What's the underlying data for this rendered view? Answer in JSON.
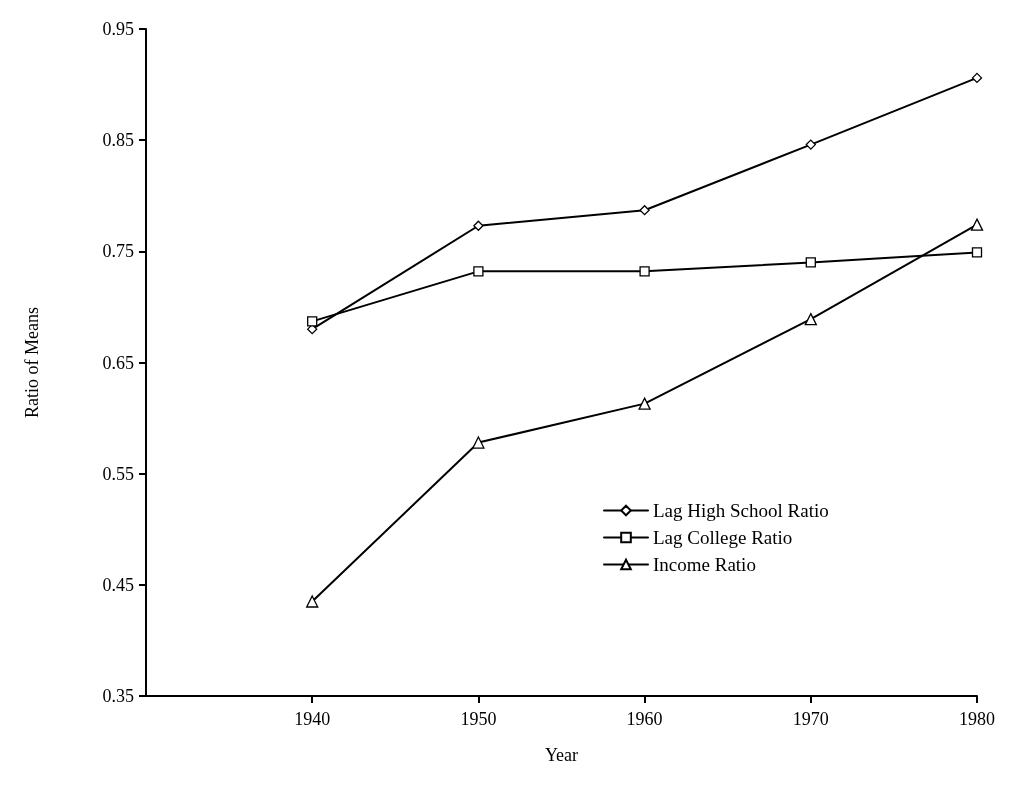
{
  "chart_data": {
    "type": "line",
    "xlabel": "Year",
    "ylabel": "Ratio of Means",
    "x": [
      1940,
      1950,
      1960,
      1970,
      1980
    ],
    "xlim": [
      1930,
      1980
    ],
    "xticks": [
      1940,
      1950,
      1960,
      1970,
      1980
    ],
    "ylim": [
      0.35,
      0.95
    ],
    "yticks": [
      0.35,
      0.45,
      0.55,
      0.65,
      0.75,
      0.85,
      0.95
    ],
    "grid": false,
    "legend": "right",
    "line_style": "solid",
    "series": [
      {
        "name": "Lag High School Ratio",
        "color": "#000000",
        "marker": "diamond",
        "values": [
          0.68,
          0.773,
          0.787,
          0.846,
          0.906
        ]
      },
      {
        "name": "Lag College Ratio",
        "color": "#000000",
        "marker": "square",
        "values": [
          0.687,
          0.732,
          0.732,
          0.74,
          0.749
        ]
      },
      {
        "name": "Income Ratio",
        "color": "#000000",
        "marker": "triangle",
        "values": [
          0.435,
          0.578,
          0.613,
          0.689,
          0.774
        ]
      }
    ]
  }
}
